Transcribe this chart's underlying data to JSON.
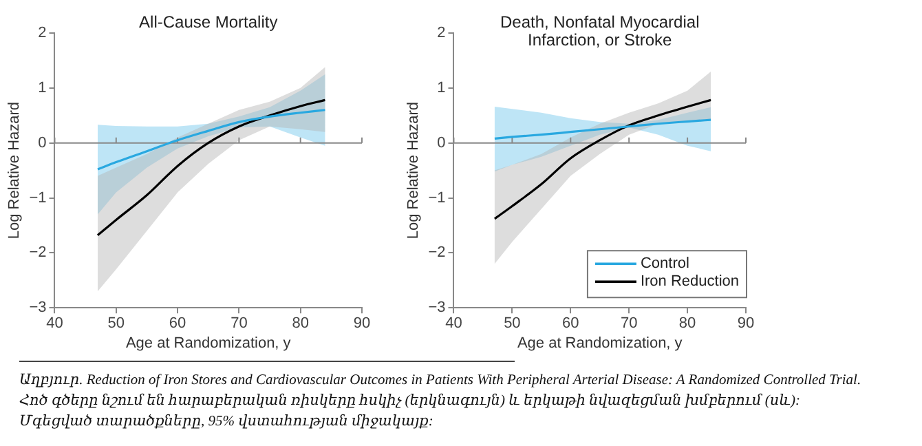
{
  "chart_data": [
    {
      "type": "line",
      "title": "All-Cause Mortality",
      "xlabel": "Age at Randomization, y",
      "ylabel": "Log Relative Hazard",
      "x": [
        47,
        50,
        55,
        60,
        65,
        70,
        75,
        80,
        84
      ],
      "series": [
        {
          "color": "#29a8e0",
          "values": [
            -0.48,
            -0.35,
            -0.15,
            0.05,
            0.22,
            0.38,
            0.48,
            0.55,
            0.6
          ],
          "lower": [
            -1.3,
            -0.9,
            -0.45,
            -0.1,
            0.12,
            0.28,
            0.3,
            0.1,
            -0.05
          ],
          "upper": [
            0.33,
            0.31,
            0.3,
            0.3,
            0.35,
            0.48,
            0.65,
            0.95,
            1.25
          ]
        },
        {
          "color": "#000000",
          "values": [
            -1.68,
            -1.4,
            -0.95,
            -0.42,
            0.0,
            0.3,
            0.5,
            0.67,
            0.78
          ],
          "lower": [
            -2.7,
            -2.3,
            -1.6,
            -0.9,
            -0.38,
            0.05,
            0.3,
            0.25,
            0.2
          ],
          "upper": [
            -0.6,
            -0.45,
            -0.2,
            0.1,
            0.35,
            0.6,
            0.75,
            1.0,
            1.38
          ]
        }
      ],
      "xlim": [
        40,
        90
      ],
      "xticks": [
        40,
        50,
        60,
        70,
        80,
        90
      ],
      "ylim": [
        -3,
        2
      ],
      "yticks": [
        -3,
        -2,
        -1,
        0,
        1,
        2
      ],
      "ref_lines": [
        {
          "axis": "y",
          "value": 0,
          "color": "#888888"
        }
      ],
      "grid": false,
      "legend": false,
      "marker": "none",
      "line_style": "solid",
      "annotations": [
        "Աղբյուր. Reduction of Iron Stores and Cardiovascular Outcomes in Patients With Peripheral Arterial Disease: A Randomized Controlled Trial.",
        "Հոծ գծերը նշում են հարաբերական ռիսկերը հսկիչ (երկնագույն) և երկաթի նվազեցման խմբերում (սև):",
        "Մգեցված տարածքները, 95% վստահության միջակայք:"
      ]
    },
    {
      "type": "line",
      "title": "Death, Nonfatal Myocardial Infarction, or Stroke",
      "xlabel": "Age at Randomization, y",
      "ylabel": "Log Relative Hazard",
      "x": [
        47,
        50,
        55,
        60,
        65,
        70,
        75,
        80,
        84
      ],
      "series": [
        {
          "name": "Control",
          "color": "#29a8e0",
          "values": [
            0.08,
            0.11,
            0.15,
            0.2,
            0.25,
            0.3,
            0.35,
            0.39,
            0.42
          ],
          "lower": [
            -0.52,
            -0.4,
            -0.25,
            -0.05,
            0.15,
            0.28,
            0.15,
            -0.05,
            -0.15
          ],
          "upper": [
            0.66,
            0.62,
            0.55,
            0.45,
            0.38,
            0.35,
            0.42,
            0.55,
            0.65
          ]
        },
        {
          "name": "Iron Reduction",
          "color": "#000000",
          "values": [
            -1.38,
            -1.15,
            -0.75,
            -0.28,
            0.05,
            0.32,
            0.5,
            0.66,
            0.78
          ],
          "lower": [
            -2.2,
            -1.8,
            -1.2,
            -0.6,
            -0.2,
            0.15,
            0.35,
            0.38,
            0.42
          ],
          "upper": [
            -0.5,
            -0.4,
            -0.2,
            0.1,
            0.35,
            0.55,
            0.72,
            0.95,
            1.3
          ]
        }
      ],
      "xlim": [
        40,
        90
      ],
      "xticks": [
        40,
        50,
        60,
        70,
        80,
        90
      ],
      "ylim": [
        -3,
        2
      ],
      "yticks": [
        -3,
        -2,
        -1,
        0,
        1,
        2
      ],
      "ref_lines": [
        {
          "axis": "y",
          "value": 0,
          "color": "#888888"
        }
      ],
      "grid": false,
      "legend": "bottom right",
      "marker": "none",
      "line_style": "solid"
    }
  ]
}
